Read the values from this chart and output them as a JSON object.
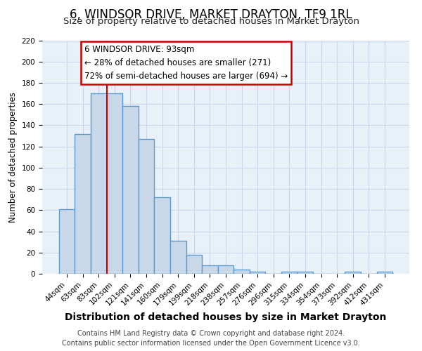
{
  "title": "6, WINDSOR DRIVE, MARKET DRAYTON, TF9 1RL",
  "subtitle": "Size of property relative to detached houses in Market Drayton",
  "bar_labels": [
    "44sqm",
    "63sqm",
    "83sqm",
    "102sqm",
    "121sqm",
    "141sqm",
    "160sqm",
    "179sqm",
    "199sqm",
    "218sqm",
    "238sqm",
    "257sqm",
    "276sqm",
    "296sqm",
    "315sqm",
    "334sqm",
    "354sqm",
    "373sqm",
    "392sqm",
    "412sqm",
    "431sqm"
  ],
  "bar_values": [
    61,
    132,
    170,
    170,
    158,
    127,
    72,
    31,
    18,
    8,
    8,
    4,
    2,
    0,
    2,
    2,
    0,
    0,
    2,
    0,
    2
  ],
  "bar_color": "#c8d8e8",
  "bar_edge_color": "#5b9bd5",
  "bar_edge_width": 1.0,
  "red_line_index": 2.5,
  "red_line_color": "#cc0000",
  "ylabel": "Number of detached properties",
  "xlabel": "Distribution of detached houses by size in Market Drayton",
  "ylim": [
    0,
    220
  ],
  "yticks": [
    0,
    20,
    40,
    60,
    80,
    100,
    120,
    140,
    160,
    180,
    200,
    220
  ],
  "annotation_box_title": "6 WINDSOR DRIVE: 93sqm",
  "annotation_line1": "← 28% of detached houses are smaller (271)",
  "annotation_line2": "72% of semi-detached houses are larger (694) →",
  "annotation_box_color": "#ffffff",
  "annotation_box_edge_color": "#cc0000",
  "grid_color": "#c8d8ea",
  "background_color": "#e8f0f8",
  "footer_line1": "Contains HM Land Registry data © Crown copyright and database right 2024.",
  "footer_line2": "Contains public sector information licensed under the Open Government Licence v3.0.",
  "title_fontsize": 12,
  "subtitle_fontsize": 9.5,
  "xlabel_fontsize": 10,
  "ylabel_fontsize": 8.5,
  "tick_fontsize": 7.5,
  "footer_fontsize": 7,
  "annotation_fontsize": 8.5
}
